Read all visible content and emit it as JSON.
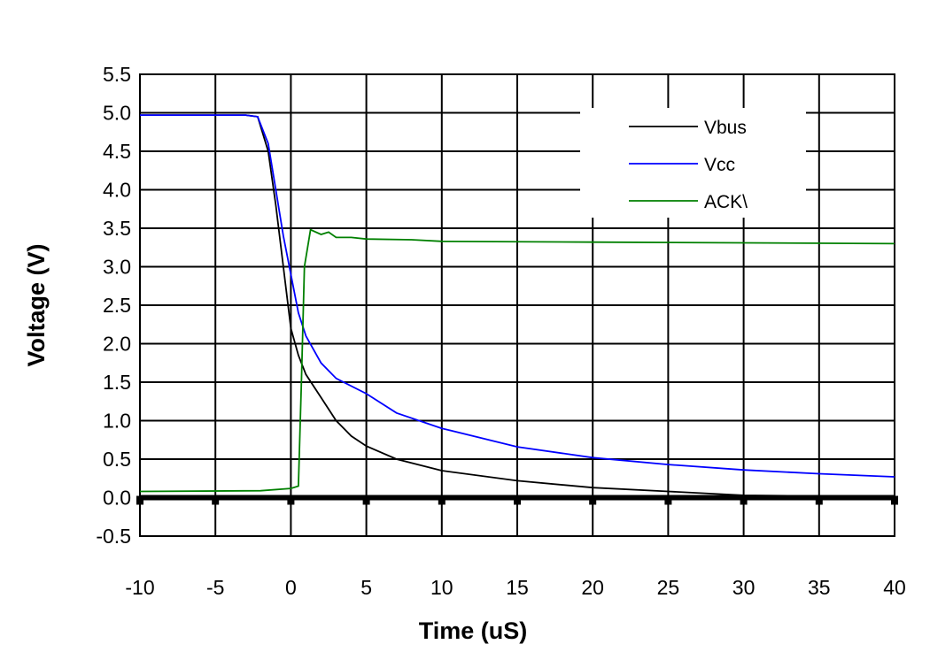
{
  "chart_data": {
    "type": "line",
    "title": "",
    "xlabel": "Time (uS)",
    "ylabel": "Voltage (V)",
    "xlim": [
      -10,
      40
    ],
    "ylim": [
      -0.5,
      5.5
    ],
    "xticks": [
      -10,
      -5,
      0,
      5,
      10,
      15,
      20,
      25,
      30,
      35,
      40
    ],
    "xtick_labels": [
      "-10",
      "-5",
      "0",
      "5",
      "10",
      "15",
      "20",
      "25",
      "30",
      "35",
      "40"
    ],
    "yticks": [
      -0.5,
      0,
      0.5,
      1,
      1.5,
      2,
      2.5,
      3,
      3.5,
      4,
      4.5,
      5,
      5.5
    ],
    "ytick_labels": [
      "-0.5",
      "0.0",
      "0.5",
      "1.0",
      "1.5",
      "2.0",
      "2.5",
      "3.0",
      "3.5",
      "4.0",
      "4.5",
      "5.0",
      "5.5"
    ],
    "grid": true,
    "legend_position": "top-right",
    "series": [
      {
        "name": "Vbus",
        "color": "#000000",
        "x": [
          -10,
          -3,
          -2.2,
          -1.5,
          -1,
          -0.5,
          0,
          0.5,
          1,
          2,
          3,
          4,
          5,
          7,
          10,
          15,
          20,
          25,
          30,
          35,
          40
        ],
        "y": [
          4.97,
          4.97,
          4.95,
          4.5,
          3.8,
          3.0,
          2.2,
          1.85,
          1.6,
          1.3,
          1.0,
          0.8,
          0.67,
          0.5,
          0.35,
          0.22,
          0.13,
          0.08,
          0.03,
          0.02,
          0.02
        ]
      },
      {
        "name": "Vcc",
        "color": "#0000ff",
        "x": [
          -10,
          -3,
          -2.2,
          -1.5,
          -1,
          -0.5,
          0,
          0.5,
          1,
          2,
          3,
          5,
          7,
          10,
          15,
          20,
          25,
          30,
          35,
          40
        ],
        "y": [
          4.97,
          4.97,
          4.95,
          4.6,
          4.0,
          3.4,
          2.9,
          2.4,
          2.1,
          1.75,
          1.55,
          1.35,
          1.1,
          0.9,
          0.66,
          0.52,
          0.43,
          0.36,
          0.31,
          0.27
        ]
      },
      {
        "name": "ACK\\",
        "color": "#008000",
        "x": [
          -10,
          -2,
          0,
          0.5,
          0.7,
          0.9,
          1.3,
          2,
          2.5,
          3,
          4,
          5,
          8,
          10,
          20,
          30,
          40
        ],
        "y": [
          0.08,
          0.09,
          0.12,
          0.15,
          1.5,
          3.0,
          3.48,
          3.42,
          3.45,
          3.38,
          3.38,
          3.36,
          3.35,
          3.33,
          3.32,
          3.31,
          3.3
        ]
      }
    ]
  }
}
